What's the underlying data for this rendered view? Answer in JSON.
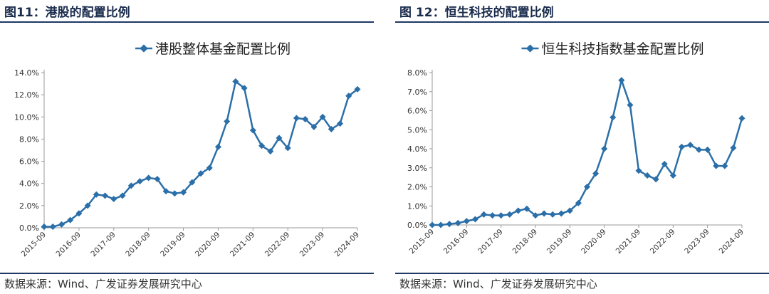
{
  "colors": {
    "series": "#2b6fa8",
    "axis": "#999999",
    "title_text": "#1a2b4c",
    "rule": "#1f3864"
  },
  "left": {
    "fig_title": "图11：港股的配置比例",
    "source": "数据来源：Wind、广发证券发展研究中心"
  },
  "right": {
    "fig_title": "图 12：恒生科技的配置比例",
    "source": "数据来源：Wind、广发证券发展研究中心"
  },
  "chart_data": [
    {
      "type": "line",
      "legend": "港股整体基金配置比例",
      "legend_placement": "top-center",
      "grid": false,
      "xticks": [
        "2015-09",
        "2016-09",
        "2017-09",
        "2018-09",
        "2019-09",
        "2020-09",
        "2021-09",
        "2022-09",
        "2023-09",
        "2024-09"
      ],
      "y_tick_labels": [
        "0.0%",
        "2.0%",
        "4.0%",
        "6.0%",
        "8.0%",
        "10.0%",
        "12.0%",
        "14.0%"
      ],
      "ylim": [
        0,
        14
      ],
      "ylabel": "",
      "xlabel": "",
      "series": [
        {
          "x": [
            "2015-09",
            "2015-12",
            "2016-03",
            "2016-06",
            "2016-09",
            "2016-12",
            "2017-03",
            "2017-06",
            "2017-09",
            "2017-12",
            "2018-03",
            "2018-06",
            "2018-09",
            "2018-12",
            "2019-03",
            "2019-06",
            "2019-09",
            "2019-12",
            "2020-03",
            "2020-06",
            "2020-09",
            "2020-12",
            "2021-03",
            "2021-06",
            "2021-09",
            "2021-12",
            "2022-03",
            "2022-06",
            "2022-09",
            "2022-12",
            "2023-03",
            "2023-06",
            "2023-09",
            "2023-12",
            "2024-03",
            "2024-06",
            "2024-09"
          ],
          "values": [
            0.1,
            0.1,
            0.3,
            0.7,
            1.3,
            2.0,
            3.0,
            2.9,
            2.6,
            2.9,
            3.8,
            4.2,
            4.5,
            4.4,
            3.3,
            3.1,
            3.2,
            4.1,
            4.9,
            5.4,
            7.3,
            9.6,
            13.2,
            12.6,
            8.8,
            7.4,
            6.9,
            8.1,
            7.2,
            9.9,
            9.8,
            9.1,
            10.0,
            8.9,
            9.4,
            11.9,
            12.5
          ]
        }
      ]
    },
    {
      "type": "line",
      "legend": "恒生科技指数基金配置比例",
      "legend_placement": "top-center",
      "grid": false,
      "xticks": [
        "2015-09",
        "2016-09",
        "2017-09",
        "2018-09",
        "2019-09",
        "2020-09",
        "2021-09",
        "2022-09",
        "2023-09",
        "2024-09"
      ],
      "y_tick_labels": [
        "0.0%",
        "1.0%",
        "2.0%",
        "3.0%",
        "4.0%",
        "5.0%",
        "6.0%",
        "7.0%",
        "8.0%"
      ],
      "ylim": [
        0,
        8
      ],
      "ylabel": "",
      "xlabel": "",
      "series": [
        {
          "x": [
            "2015-09",
            "2015-12",
            "2016-03",
            "2016-06",
            "2016-09",
            "2016-12",
            "2017-03",
            "2017-06",
            "2017-09",
            "2017-12",
            "2018-03",
            "2018-06",
            "2018-09",
            "2018-12",
            "2019-03",
            "2019-06",
            "2019-09",
            "2019-12",
            "2020-03",
            "2020-06",
            "2020-09",
            "2020-12",
            "2021-03",
            "2021-06",
            "2021-09",
            "2021-12",
            "2022-03",
            "2022-06",
            "2022-09",
            "2022-12",
            "2023-03",
            "2023-06",
            "2023-09",
            "2023-12",
            "2024-03",
            "2024-06",
            "2024-09"
          ],
          "values": [
            0.0,
            0.0,
            0.05,
            0.1,
            0.2,
            0.3,
            0.55,
            0.5,
            0.5,
            0.55,
            0.75,
            0.85,
            0.5,
            0.6,
            0.55,
            0.6,
            0.75,
            1.15,
            2.0,
            2.7,
            4.0,
            5.65,
            7.6,
            6.3,
            2.85,
            2.6,
            2.4,
            3.2,
            2.6,
            4.1,
            4.2,
            3.95,
            3.95,
            3.1,
            3.1,
            4.05,
            5.6
          ]
        }
      ]
    }
  ]
}
